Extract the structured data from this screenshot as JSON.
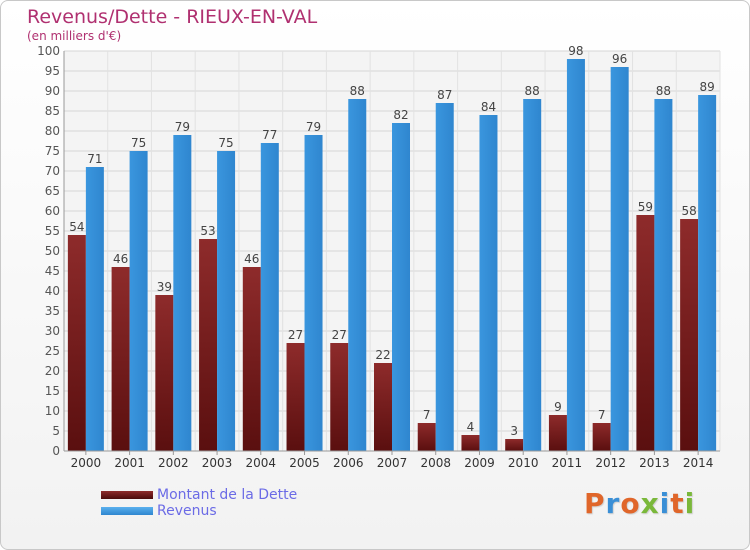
{
  "header": {
    "title": "Revenus/Dette - RIEUX-EN-VAL",
    "subtitle": "(en milliers d'€)"
  },
  "chart_data": {
    "type": "bar",
    "categories": [
      "2000",
      "2001",
      "2002",
      "2003",
      "2004",
      "2005",
      "2006",
      "2007",
      "2008",
      "2009",
      "2010",
      "2011",
      "2012",
      "2013",
      "2014"
    ],
    "series": [
      {
        "name": "Montant de la Dette",
        "color": "#7a1f1f",
        "values": [
          54,
          46,
          39,
          53,
          46,
          27,
          27,
          22,
          7,
          4,
          3,
          9,
          7,
          59,
          58
        ]
      },
      {
        "name": "Revenus",
        "color": "#3a96de",
        "values": [
          71,
          75,
          79,
          75,
          77,
          79,
          88,
          82,
          87,
          84,
          88,
          98,
          96,
          88,
          89
        ]
      }
    ],
    "ylim": [
      0,
      100
    ],
    "yticks": [
      0,
      5,
      10,
      15,
      20,
      25,
      30,
      35,
      40,
      45,
      50,
      55,
      60,
      65,
      70,
      75,
      80,
      85,
      90,
      95,
      100
    ],
    "grid": true,
    "legend_position": "bottom-left"
  },
  "legend": {
    "items": [
      {
        "label": "Montant de la Dette",
        "color": "#7a1f1f"
      },
      {
        "label": "Revenus",
        "color": "#3a96de"
      }
    ]
  },
  "logo": {
    "text": "Proxiti",
    "colors": [
      "#e0662a",
      "#3a8fd6",
      "#e0662a",
      "#7ab83a",
      "#3a8fd6",
      "#e0662a",
      "#7ab83a"
    ]
  }
}
